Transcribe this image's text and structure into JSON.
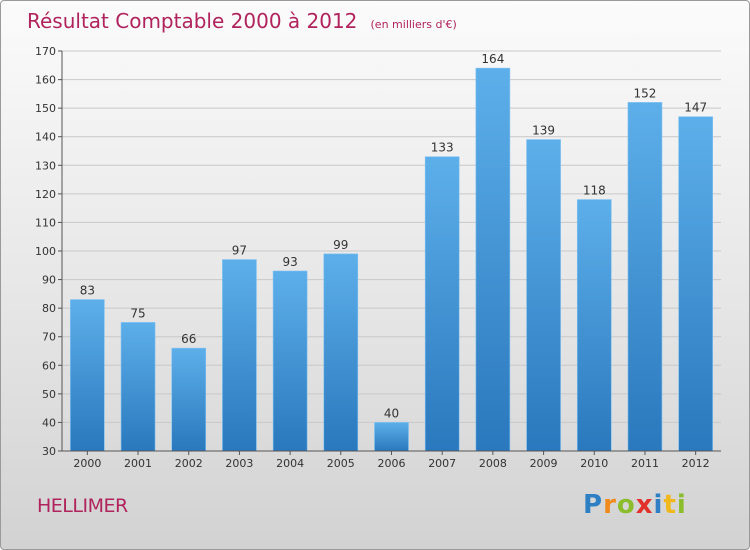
{
  "header": {
    "title": "Résultat Comptable 2000 à 2012",
    "unit": "(en milliers d'€)"
  },
  "commune": "HELLIMER",
  "logo": {
    "letters": [
      {
        "char": "P",
        "color": "#2e7fc4"
      },
      {
        "char": "r",
        "color": "#f08a1c"
      },
      {
        "char": "o",
        "color": "#8bbd2d"
      },
      {
        "char": "x",
        "color": "#e2312b"
      },
      {
        "char": "i",
        "color": "#2e7fc4"
      },
      {
        "char": "t",
        "color": "#f0b81c"
      },
      {
        "char": "i",
        "color": "#8bbd2d"
      }
    ]
  },
  "chart_data": {
    "type": "bar",
    "title": "Résultat Comptable 2000 à 2012",
    "ylabel": "(en milliers d'€)",
    "xlabel": "",
    "categories": [
      "2000",
      "2001",
      "2002",
      "2003",
      "2004",
      "2005",
      "2006",
      "2007",
      "2008",
      "2009",
      "2010",
      "2011",
      "2012"
    ],
    "values": [
      83,
      75,
      66,
      97,
      93,
      99,
      40,
      133,
      164,
      139,
      118,
      152,
      147
    ],
    "ylim": [
      30,
      170
    ],
    "yticks": [
      30,
      40,
      50,
      60,
      70,
      80,
      90,
      100,
      110,
      120,
      130,
      140,
      150,
      160,
      170
    ],
    "grid": true,
    "bar_color": "#4a9ee0",
    "legend": "none"
  }
}
